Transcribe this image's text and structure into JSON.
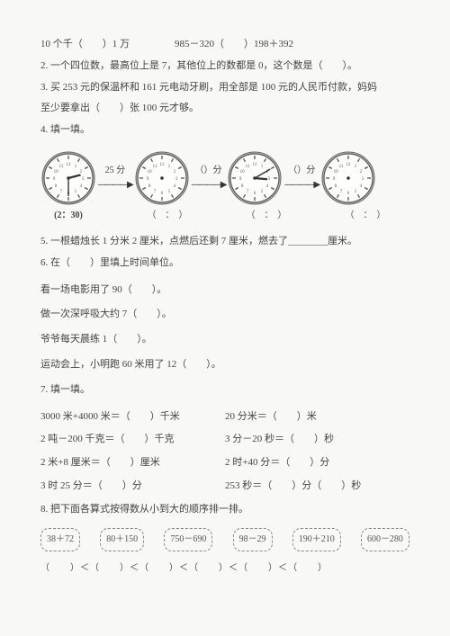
{
  "row1": {
    "left": "10 个千（　　）1 万",
    "right": "985－320（　　）198＋392"
  },
  "q2": "2. 一个四位数，最高位上是 7，其他位上的数都是 0，这个数是（　　）。",
  "q3a": "3. 买 253 元的保温杯和 161 元电动牙刷，用全部是 100 元的人民币付款，妈妈",
  "q3b": "至少要拿出（　　）张 100 元才够。",
  "q4": "4. 填一填。",
  "clocks": {
    "arrow1_label": "25 分",
    "arrow2_label": "）分",
    "arrow3_label": "）分",
    "label1": "(2：30)",
    "label2": "（　：　）",
    "label3": "（　：　）",
    "label4": "（　：　）",
    "clock1": {
      "h": 2,
      "m": 30
    },
    "clock2": {
      "h": 0,
      "m": 0
    },
    "clock3": {
      "h": 3,
      "m": 10
    },
    "clock4": {
      "h": 0,
      "m": 0
    }
  },
  "q5": "5. 一根蜡烛长 1 分米 2 厘米，点燃后还剩 7 厘米，燃去了________厘米。",
  "q6": "6. 在（　　）里填上时间单位。",
  "q6a": "看一场电影用了 90（　　）。",
  "q6b": "做一次深呼吸大约 7（　　）。",
  "q6c": "爷爷每天晨练 1（　　）。",
  "q6d": "运动会上，小明跑 60 米用了 12（　　）。",
  "q7title": "7. 填一填。",
  "q7items": {
    "a": "3000 米+4000 米＝（　　）千米",
    "b": "20 分米＝（　　）米",
    "c": "2 吨－200 千克＝（　　）千克",
    "d": "3 分－20 秒＝（　　）秒",
    "e": "2 米+8 厘米＝（　　）厘米",
    "f": "2 时+40 分＝（　　）分",
    "g": "3 时 25 分＝（　　）分",
    "h": "253 秒＝（　　）分（　　）秒"
  },
  "q8": "8. 把下面各算式按得数从小到大的顺序排一排。",
  "exprs": [
    "38＋72",
    "80＋150",
    "750－690",
    "98－29",
    "190＋210",
    "600－280"
  ],
  "compare": "（　　）＜（　　）＜（　　）＜（　　）＜（　　）＜（　　）"
}
